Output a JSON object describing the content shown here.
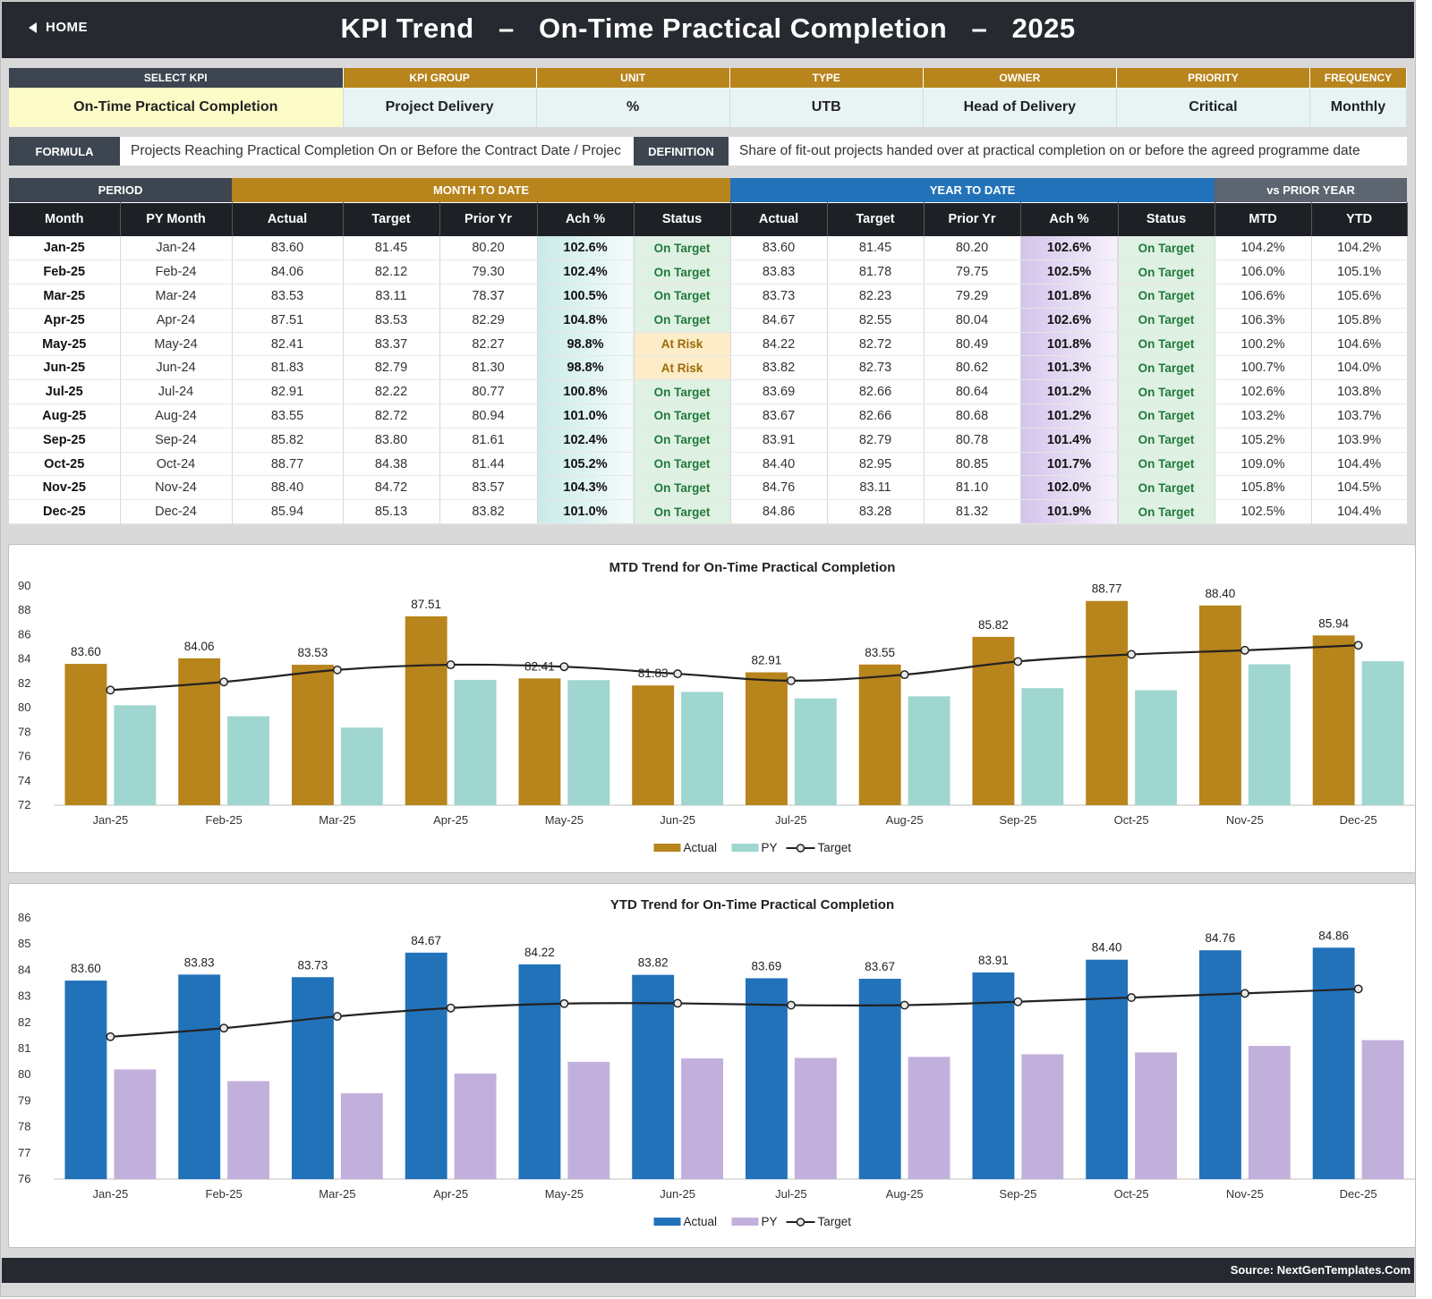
{
  "header": {
    "home_label": "HOME",
    "title": "KPI Trend   –   On-Time Practical Completion   –   2025"
  },
  "info": {
    "headers": [
      "SELECT KPI",
      "KPI GROUP",
      "UNIT",
      "TYPE",
      "OWNER",
      "PRIORITY",
      "FREQUENCY"
    ],
    "values": [
      "On-Time Practical Completion",
      "Project Delivery",
      "%",
      "UTB",
      "Head of Delivery",
      "Critical",
      "Monthly"
    ]
  },
  "formula": {
    "label": "FORMULA",
    "text": "Projects Reaching Practical Completion On or Before the Contract Date / Projec",
    "def_label": "DEFINITION",
    "def_text": "Share of fit-out projects handed over at practical completion on or before the agreed programme date"
  },
  "table": {
    "groups": [
      "PERIOD",
      "MONTH TO DATE",
      "YEAR TO DATE",
      "vs PRIOR YEAR"
    ],
    "columns": [
      "Month",
      "PY Month",
      "Actual",
      "Target",
      "Prior Yr",
      "Ach %",
      "Status",
      "Actual",
      "Target",
      "Prior Yr",
      "Ach %",
      "Status",
      "MTD",
      "YTD"
    ],
    "rows": [
      [
        "Jan-25",
        "Jan-24",
        "83.60",
        "81.45",
        "80.20",
        "102.6%",
        "On Target",
        "83.60",
        "81.45",
        "80.20",
        "102.6%",
        "On Target",
        "104.2%",
        "104.2%"
      ],
      [
        "Feb-25",
        "Feb-24",
        "84.06",
        "82.12",
        "79.30",
        "102.4%",
        "On Target",
        "83.83",
        "81.78",
        "79.75",
        "102.5%",
        "On Target",
        "106.0%",
        "105.1%"
      ],
      [
        "Mar-25",
        "Mar-24",
        "83.53",
        "83.11",
        "78.37",
        "100.5%",
        "On Target",
        "83.73",
        "82.23",
        "79.29",
        "101.8%",
        "On Target",
        "106.6%",
        "105.6%"
      ],
      [
        "Apr-25",
        "Apr-24",
        "87.51",
        "83.53",
        "82.29",
        "104.8%",
        "On Target",
        "84.67",
        "82.55",
        "80.04",
        "102.6%",
        "On Target",
        "106.3%",
        "105.8%"
      ],
      [
        "May-25",
        "May-24",
        "82.41",
        "83.37",
        "82.27",
        "98.8%",
        "At Risk",
        "84.22",
        "82.72",
        "80.49",
        "101.8%",
        "On Target",
        "100.2%",
        "104.6%"
      ],
      [
        "Jun-25",
        "Jun-24",
        "81.83",
        "82.79",
        "81.30",
        "98.8%",
        "At Risk",
        "83.82",
        "82.73",
        "80.62",
        "101.3%",
        "On Target",
        "100.7%",
        "104.0%"
      ],
      [
        "Jul-25",
        "Jul-24",
        "82.91",
        "82.22",
        "80.77",
        "100.8%",
        "On Target",
        "83.69",
        "82.66",
        "80.64",
        "101.2%",
        "On Target",
        "102.6%",
        "103.8%"
      ],
      [
        "Aug-25",
        "Aug-24",
        "83.55",
        "82.72",
        "80.94",
        "101.0%",
        "On Target",
        "83.67",
        "82.66",
        "80.68",
        "101.2%",
        "On Target",
        "103.2%",
        "103.7%"
      ],
      [
        "Sep-25",
        "Sep-24",
        "85.82",
        "83.80",
        "81.61",
        "102.4%",
        "On Target",
        "83.91",
        "82.79",
        "80.78",
        "101.4%",
        "On Target",
        "105.2%",
        "103.9%"
      ],
      [
        "Oct-25",
        "Oct-24",
        "88.77",
        "84.38",
        "81.44",
        "105.2%",
        "On Target",
        "84.40",
        "82.95",
        "80.85",
        "101.7%",
        "On Target",
        "109.0%",
        "104.4%"
      ],
      [
        "Nov-25",
        "Nov-24",
        "88.40",
        "84.72",
        "83.57",
        "104.3%",
        "On Target",
        "84.76",
        "83.11",
        "81.10",
        "102.0%",
        "On Target",
        "105.8%",
        "104.5%"
      ],
      [
        "Dec-25",
        "Dec-24",
        "85.94",
        "85.13",
        "83.82",
        "101.0%",
        "On Target",
        "84.86",
        "83.28",
        "81.32",
        "101.9%",
        "On Target",
        "102.5%",
        "104.4%"
      ]
    ]
  },
  "chart_data": [
    {
      "type": "bar",
      "title": "MTD Trend for On-Time Practical Completion",
      "categories": [
        "Jan-25",
        "Feb-25",
        "Mar-25",
        "Apr-25",
        "May-25",
        "Jun-25",
        "Jul-25",
        "Aug-25",
        "Sep-25",
        "Oct-25",
        "Nov-25",
        "Dec-25"
      ],
      "series": [
        {
          "name": "Actual",
          "kind": "bar",
          "color": "#b8841c",
          "values": [
            83.6,
            84.06,
            83.53,
            87.51,
            82.41,
            81.83,
            82.91,
            83.55,
            85.82,
            88.77,
            88.4,
            85.94
          ]
        },
        {
          "name": "PY",
          "kind": "bar",
          "color": "#9fd6cf",
          "values": [
            80.2,
            79.3,
            78.37,
            82.29,
            82.27,
            81.3,
            80.77,
            80.94,
            81.61,
            81.44,
            83.57,
            83.82
          ]
        },
        {
          "name": "Target",
          "kind": "line",
          "color": "#222222",
          "values": [
            81.45,
            82.12,
            83.11,
            83.53,
            83.37,
            82.79,
            82.22,
            82.72,
            83.8,
            84.38,
            84.72,
            85.13
          ]
        }
      ],
      "ylim": [
        72,
        90
      ],
      "yticks": [
        72,
        74,
        76,
        78,
        80,
        82,
        84,
        86,
        88,
        90
      ],
      "legend": "bottom-center"
    },
    {
      "type": "bar",
      "title": "YTD Trend for On-Time Practical Completion",
      "categories": [
        "Jan-25",
        "Feb-25",
        "Mar-25",
        "Apr-25",
        "May-25",
        "Jun-25",
        "Jul-25",
        "Aug-25",
        "Sep-25",
        "Oct-25",
        "Nov-25",
        "Dec-25"
      ],
      "series": [
        {
          "name": "Actual",
          "kind": "bar",
          "color": "#2272ba",
          "values": [
            83.6,
            83.83,
            83.73,
            84.67,
            84.22,
            83.82,
            83.69,
            83.67,
            83.91,
            84.4,
            84.76,
            84.86
          ]
        },
        {
          "name": "PY",
          "kind": "bar",
          "color": "#c2b0dc",
          "values": [
            80.2,
            79.75,
            79.29,
            80.04,
            80.49,
            80.62,
            80.64,
            80.68,
            80.78,
            80.85,
            81.1,
            81.32
          ]
        },
        {
          "name": "Target",
          "kind": "line",
          "color": "#222222",
          "values": [
            81.45,
            81.78,
            82.23,
            82.55,
            82.72,
            82.73,
            82.66,
            82.66,
            82.79,
            82.95,
            83.11,
            83.28
          ]
        }
      ],
      "ylim": [
        76,
        86
      ],
      "yticks": [
        76,
        77,
        78,
        79,
        80,
        81,
        82,
        83,
        84,
        85,
        86
      ],
      "legend": "bottom-center"
    }
  ],
  "footer": {
    "source": "Source: NextGenTemplates.Com"
  },
  "colors": {
    "header_bg": "#262a30",
    "mtd_accent": "#b8841c",
    "ytd_accent": "#2272ba"
  }
}
